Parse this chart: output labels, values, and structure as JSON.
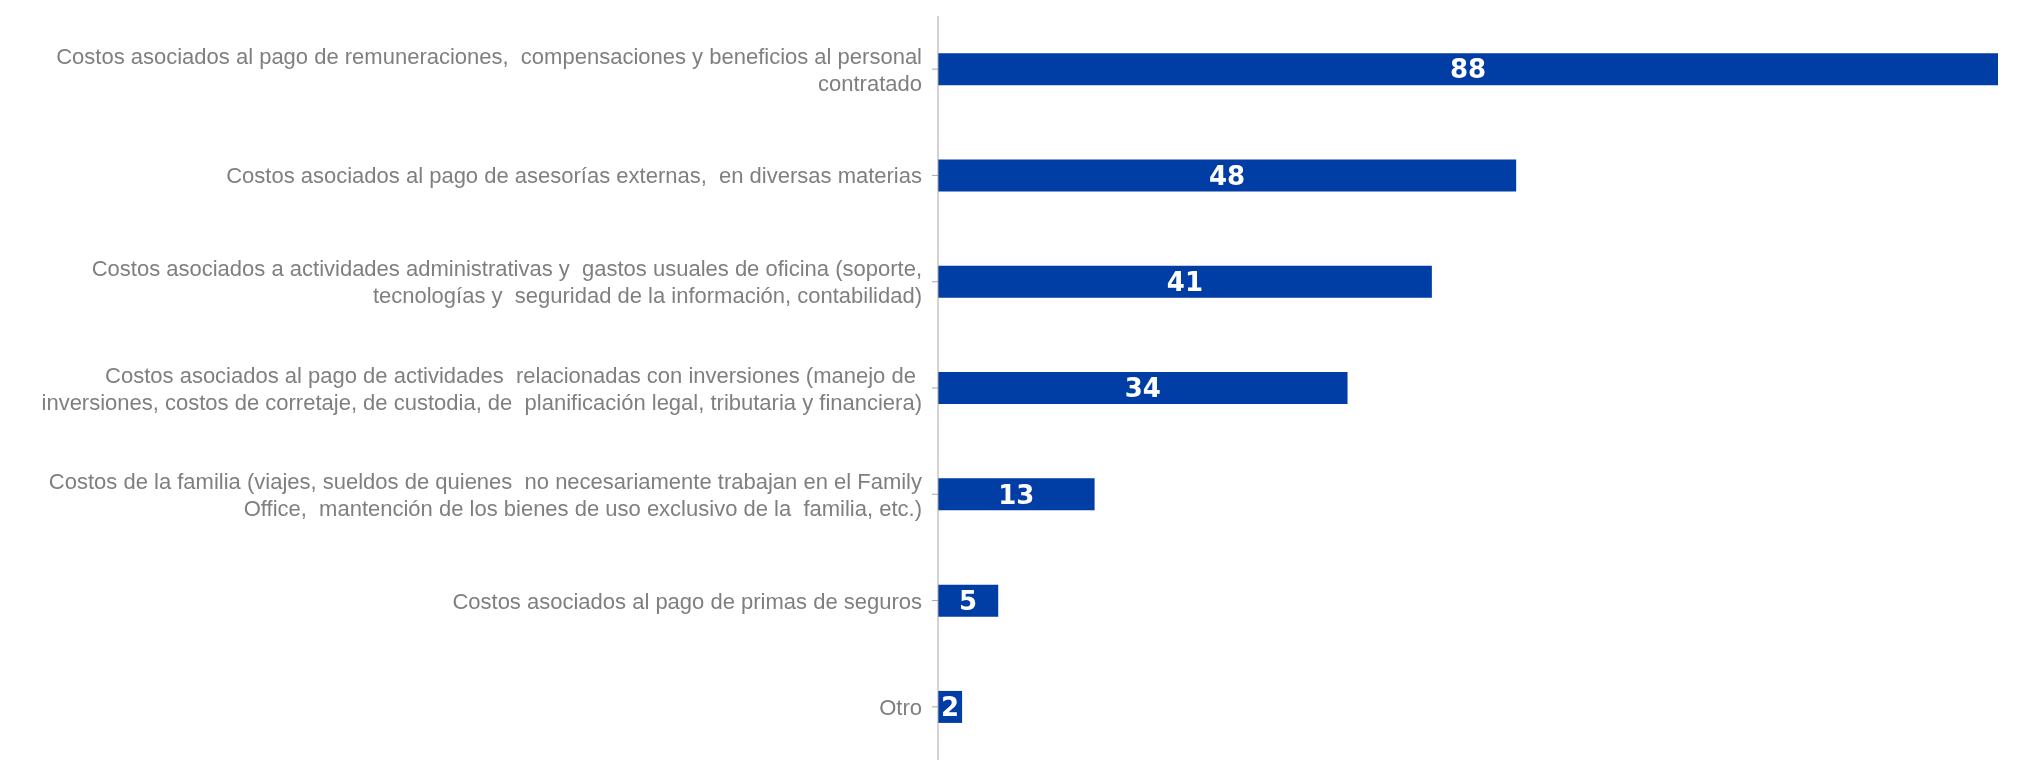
{
  "chart_data": {
    "type": "bar",
    "orientation": "horizontal",
    "categories": [
      "Costos asociados al pago de remuneraciones,  compensaciones y beneficios al personal contratado",
      "Costos asociados al pago de asesorías externas,  en diversas materias",
      "Costos asociados a actividades administrativas y  gastos usuales de oficina (soporte, tecnologías y  seguridad de la información, contabilidad)",
      "Costos asociados al pago de actividades  relacionadas con inversiones (manejo de  inversiones, costos de corretaje, de custodia, de  planificación legal, tributaria y financiera)",
      "Costos de la familia (viajes, sueldos de quienes  no necesariamente trabajan en el Family Office,  mantención de los bienes de uso exclusivo de la  familia, etc.)",
      "Costos asociados al pago de primas de seguros",
      "Otro"
    ],
    "values": [
      88,
      48,
      41,
      34,
      13,
      5,
      2
    ],
    "color": "#003da5",
    "data_labels": true,
    "grid": false,
    "legend": false
  }
}
